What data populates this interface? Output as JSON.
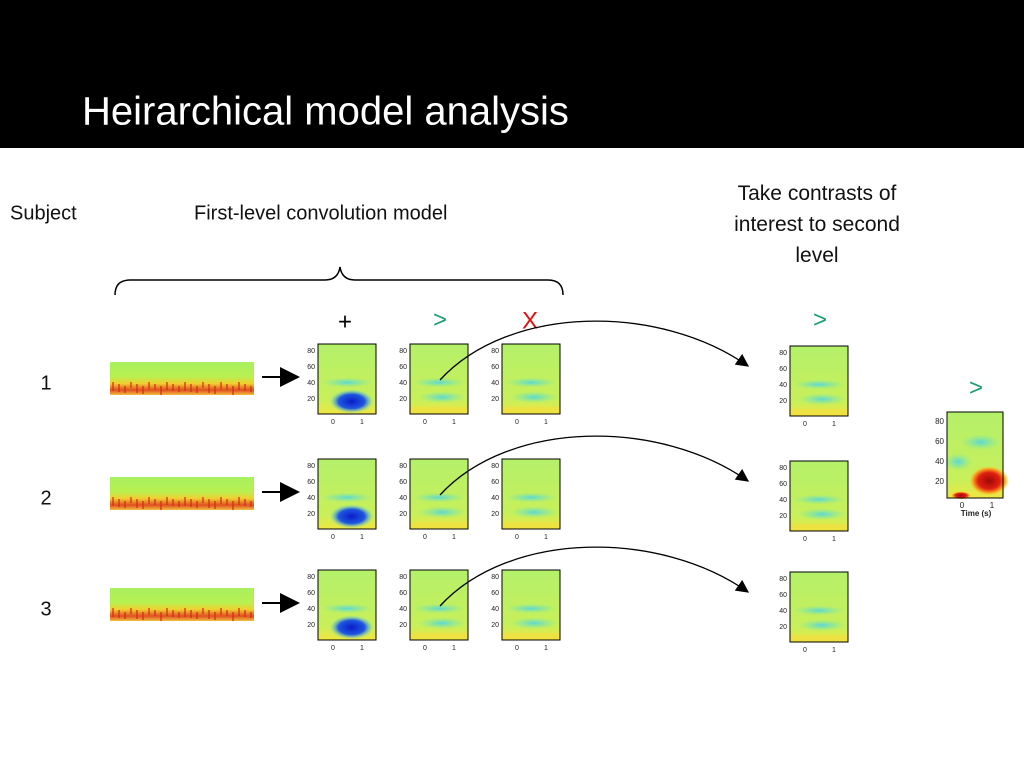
{
  "header": {
    "title": "Heirarchical model analysis"
  },
  "labels": {
    "subject": "Subject",
    "first_level": "First-level convolution model",
    "second_level": "Take contrasts of interest to second level"
  },
  "contrast_symbols": {
    "plus": "+",
    "greater": ">",
    "cross": "X",
    "second_level": ">",
    "group": ">"
  },
  "rows": [
    "1",
    "2",
    "3"
  ],
  "axis": {
    "yticks": [
      "80",
      "60",
      "40",
      "20"
    ],
    "xticks": [
      "0",
      "1"
    ],
    "xlabel": "Time (s)"
  }
}
